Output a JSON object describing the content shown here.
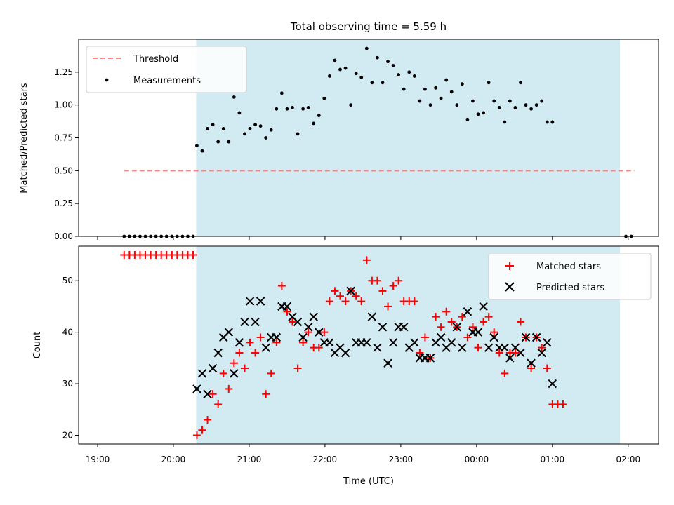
{
  "figure": {
    "title": "Total observing time = 5.59 h",
    "xlabel": "Time (UTC)"
  },
  "colors": {
    "observing_band": "#add8e6",
    "threshold": "#ff7f7f",
    "measurements": "#000000",
    "matched": "#ff0000",
    "predicted": "#000000"
  },
  "chart_data": [
    {
      "type": "scatter",
      "panel": "top",
      "ylabel": "Matched/Predicted stars",
      "x_unit": "hours since 19:00 UTC",
      "xlim": [
        -0.25,
        7.4
      ],
      "ylim": [
        0,
        1.5
      ],
      "yticks": [
        0.0,
        0.25,
        0.5,
        0.75,
        1.0,
        1.25
      ],
      "ytick_labels": [
        "0.00",
        "0.25",
        "0.50",
        "0.75",
        "1.00",
        "1.25"
      ],
      "observing_window": [
        1.3,
        6.89
      ],
      "legend": {
        "position": "upper left",
        "entries": [
          "Threshold",
          "Measurements"
        ]
      },
      "series": [
        {
          "name": "Threshold",
          "kind": "line",
          "style": "dashed",
          "x": [
            0.35,
            7.08
          ],
          "y": [
            0.5,
            0.5
          ]
        },
        {
          "name": "Measurements",
          "kind": "scatter",
          "marker": "dot",
          "points": [
            [
              0.35,
              0
            ],
            [
              0.42,
              0
            ],
            [
              0.49,
              0
            ],
            [
              0.56,
              0
            ],
            [
              0.63,
              0
            ],
            [
              0.7,
              0
            ],
            [
              0.77,
              0
            ],
            [
              0.84,
              0
            ],
            [
              0.91,
              0
            ],
            [
              0.98,
              0
            ],
            [
              1.05,
              0
            ],
            [
              1.12,
              0
            ],
            [
              1.19,
              0
            ],
            [
              1.26,
              0
            ],
            [
              1.31,
              0.69
            ],
            [
              1.38,
              0.65
            ],
            [
              1.45,
              0.82
            ],
            [
              1.52,
              0.85
            ],
            [
              1.59,
              0.72
            ],
            [
              1.66,
              0.82
            ],
            [
              1.73,
              0.72
            ],
            [
              1.8,
              1.06
            ],
            [
              1.87,
              0.94
            ],
            [
              1.94,
              0.78
            ],
            [
              2.01,
              0.82
            ],
            [
              2.08,
              0.85
            ],
            [
              2.15,
              0.84
            ],
            [
              2.22,
              0.75
            ],
            [
              2.29,
              0.81
            ],
            [
              2.36,
              0.97
            ],
            [
              2.43,
              1.09
            ],
            [
              2.5,
              0.97
            ],
            [
              2.57,
              0.98
            ],
            [
              2.64,
              0.78
            ],
            [
              2.71,
              0.97
            ],
            [
              2.78,
              0.98
            ],
            [
              2.85,
              0.86
            ],
            [
              2.92,
              0.92
            ],
            [
              2.99,
              1.05
            ],
            [
              3.06,
              1.22
            ],
            [
              3.13,
              1.34
            ],
            [
              3.2,
              1.27
            ],
            [
              3.27,
              1.28
            ],
            [
              3.34,
              1.0
            ],
            [
              3.41,
              1.24
            ],
            [
              3.48,
              1.21
            ],
            [
              3.55,
              1.43
            ],
            [
              3.62,
              1.17
            ],
            [
              3.69,
              1.36
            ],
            [
              3.76,
              1.17
            ],
            [
              3.83,
              1.33
            ],
            [
              3.9,
              1.3
            ],
            [
              3.97,
              1.23
            ],
            [
              4.04,
              1.12
            ],
            [
              4.11,
              1.25
            ],
            [
              4.18,
              1.22
            ],
            [
              4.25,
              1.03
            ],
            [
              4.32,
              1.12
            ],
            [
              4.39,
              1.0
            ],
            [
              4.46,
              1.13
            ],
            [
              4.53,
              1.05
            ],
            [
              4.6,
              1.19
            ],
            [
              4.67,
              1.1
            ],
            [
              4.74,
              1.0
            ],
            [
              4.81,
              1.16
            ],
            [
              4.88,
              0.89
            ],
            [
              4.95,
              1.03
            ],
            [
              5.02,
              0.93
            ],
            [
              5.09,
              0.94
            ],
            [
              5.16,
              1.17
            ],
            [
              5.23,
              1.03
            ],
            [
              5.3,
              0.98
            ],
            [
              5.37,
              0.87
            ],
            [
              5.44,
              1.03
            ],
            [
              5.51,
              0.98
            ],
            [
              5.58,
              1.17
            ],
            [
              5.65,
              1.0
            ],
            [
              5.72,
              0.97
            ],
            [
              5.79,
              1.0
            ],
            [
              5.86,
              1.03
            ],
            [
              5.93,
              0.87
            ],
            [
              6.0,
              0.87
            ],
            [
              6.0,
              0.87
            ],
            [
              6.97,
              0
            ],
            [
              7.04,
              0
            ]
          ]
        }
      ]
    },
    {
      "type": "scatter",
      "panel": "bottom",
      "ylabel": "Count",
      "xlabel": "Time (UTC)",
      "x_unit": "hours since 19:00 UTC",
      "xlim": [
        -0.25,
        7.4
      ],
      "ylim": [
        18.3,
        56.7
      ],
      "xticks": [
        0,
        1,
        2,
        3,
        4,
        5,
        6,
        7
      ],
      "xtick_labels": [
        "19:00",
        "20:00",
        "21:00",
        "22:00",
        "23:00",
        "00:00",
        "01:00",
        "02:00"
      ],
      "yticks": [
        20,
        30,
        40,
        50
      ],
      "ytick_labels": [
        "20",
        "30",
        "40",
        "50"
      ],
      "observing_window": [
        1.3,
        6.89
      ],
      "legend": {
        "position": "upper right",
        "entries": [
          "Matched stars",
          "Predicted stars"
        ]
      },
      "series": [
        {
          "name": "Matched stars",
          "marker": "plus",
          "points": [
            [
              0.35,
              55
            ],
            [
              0.42,
              55
            ],
            [
              0.49,
              55
            ],
            [
              0.56,
              55
            ],
            [
              0.63,
              55
            ],
            [
              0.7,
              55
            ],
            [
              0.77,
              55
            ],
            [
              0.84,
              55
            ],
            [
              0.91,
              55
            ],
            [
              0.98,
              55
            ],
            [
              1.05,
              55
            ],
            [
              1.12,
              55
            ],
            [
              1.19,
              55
            ],
            [
              1.26,
              55
            ],
            [
              1.31,
              20
            ],
            [
              1.38,
              21
            ],
            [
              1.45,
              23
            ],
            [
              1.52,
              28
            ],
            [
              1.59,
              26
            ],
            [
              1.66,
              32
            ],
            [
              1.73,
              29
            ],
            [
              1.8,
              34
            ],
            [
              1.87,
              36
            ],
            [
              1.94,
              33
            ],
            [
              2.01,
              38
            ],
            [
              2.08,
              36
            ],
            [
              2.15,
              39
            ],
            [
              2.22,
              28
            ],
            [
              2.29,
              32
            ],
            [
              2.36,
              38
            ],
            [
              2.43,
              49
            ],
            [
              2.5,
              44
            ],
            [
              2.57,
              42
            ],
            [
              2.64,
              33
            ],
            [
              2.71,
              38
            ],
            [
              2.78,
              40
            ],
            [
              2.85,
              37
            ],
            [
              2.92,
              37
            ],
            [
              2.99,
              40
            ],
            [
              3.06,
              46
            ],
            [
              3.13,
              48
            ],
            [
              3.2,
              47
            ],
            [
              3.27,
              46
            ],
            [
              3.34,
              48
            ],
            [
              3.41,
              47
            ],
            [
              3.48,
              46
            ],
            [
              3.55,
              54
            ],
            [
              3.62,
              50
            ],
            [
              3.69,
              50
            ],
            [
              3.76,
              48
            ],
            [
              3.83,
              45
            ],
            [
              3.9,
              49
            ],
            [
              3.97,
              50
            ],
            [
              4.04,
              46
            ],
            [
              4.11,
              46
            ],
            [
              4.18,
              46
            ],
            [
              4.25,
              36
            ],
            [
              4.32,
              39
            ],
            [
              4.39,
              35
            ],
            [
              4.46,
              43
            ],
            [
              4.53,
              41
            ],
            [
              4.6,
              44
            ],
            [
              4.67,
              42
            ],
            [
              4.74,
              41
            ],
            [
              4.81,
              43
            ],
            [
              4.88,
              39
            ],
            [
              4.95,
              41
            ],
            [
              5.02,
              37
            ],
            [
              5.09,
              42
            ],
            [
              5.16,
              43
            ],
            [
              5.23,
              40
            ],
            [
              5.3,
              36
            ],
            [
              5.37,
              32
            ],
            [
              5.44,
              36
            ],
            [
              5.51,
              36
            ],
            [
              5.58,
              42
            ],
            [
              5.65,
              39
            ],
            [
              5.72,
              33
            ],
            [
              5.79,
              39
            ],
            [
              5.86,
              37
            ],
            [
              5.93,
              33
            ],
            [
              6.0,
              26
            ],
            [
              6.07,
              26
            ],
            [
              6.14,
              26
            ]
          ]
        },
        {
          "name": "Predicted stars",
          "marker": "x",
          "points": [
            [
              1.31,
              29
            ],
            [
              1.38,
              32
            ],
            [
              1.45,
              28
            ],
            [
              1.52,
              33
            ],
            [
              1.59,
              36
            ],
            [
              1.66,
              39
            ],
            [
              1.73,
              40
            ],
            [
              1.8,
              32
            ],
            [
              1.87,
              38
            ],
            [
              1.94,
              42
            ],
            [
              2.01,
              46
            ],
            [
              2.08,
              42
            ],
            [
              2.15,
              46
            ],
            [
              2.22,
              37
            ],
            [
              2.29,
              39
            ],
            [
              2.36,
              39
            ],
            [
              2.43,
              45
            ],
            [
              2.5,
              45
            ],
            [
              2.57,
              43
            ],
            [
              2.64,
              42
            ],
            [
              2.71,
              39
            ],
            [
              2.78,
              41
            ],
            [
              2.85,
              43
            ],
            [
              2.92,
              40
            ],
            [
              2.99,
              38
            ],
            [
              3.06,
              38
            ],
            [
              3.13,
              36
            ],
            [
              3.2,
              37
            ],
            [
              3.27,
              36
            ],
            [
              3.34,
              48
            ],
            [
              3.41,
              38
            ],
            [
              3.48,
              38
            ],
            [
              3.55,
              38
            ],
            [
              3.62,
              43
            ],
            [
              3.69,
              37
            ],
            [
              3.76,
              41
            ],
            [
              3.83,
              34
            ],
            [
              3.9,
              38
            ],
            [
              3.97,
              41
            ],
            [
              4.04,
              41
            ],
            [
              4.11,
              37
            ],
            [
              4.18,
              38
            ],
            [
              4.25,
              35
            ],
            [
              4.32,
              35
            ],
            [
              4.39,
              35
            ],
            [
              4.46,
              38
            ],
            [
              4.53,
              39
            ],
            [
              4.6,
              37
            ],
            [
              4.67,
              38
            ],
            [
              4.74,
              41
            ],
            [
              4.81,
              37
            ],
            [
              4.88,
              44
            ],
            [
              4.95,
              40
            ],
            [
              5.02,
              40
            ],
            [
              5.09,
              45
            ],
            [
              5.16,
              37
            ],
            [
              5.23,
              39
            ],
            [
              5.3,
              37
            ],
            [
              5.37,
              37
            ],
            [
              5.44,
              35
            ],
            [
              5.51,
              37
            ],
            [
              5.58,
              36
            ],
            [
              5.65,
              39
            ],
            [
              5.72,
              34
            ],
            [
              5.79,
              39
            ],
            [
              5.86,
              36
            ],
            [
              5.93,
              38
            ],
            [
              6.0,
              30
            ]
          ]
        }
      ]
    }
  ]
}
